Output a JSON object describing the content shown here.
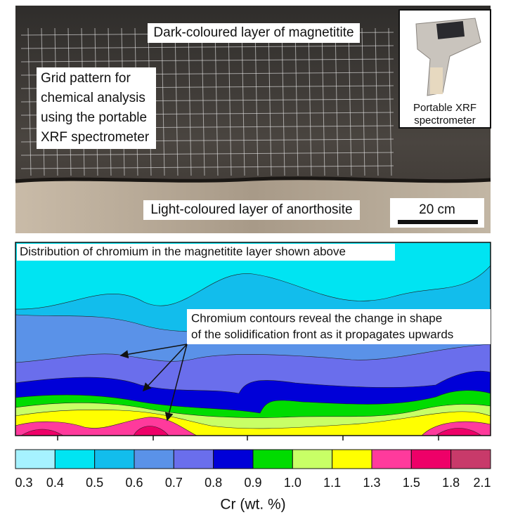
{
  "photo": {
    "top_label": "Dark-coloured layer of magnetitite",
    "left_label": [
      "Grid pattern for",
      "chemical analysis",
      "using the portable",
      "XRF spectrometer"
    ],
    "bottom_label": "Light-coloured layer of anorthosite",
    "scale_bar": "20 cm",
    "inset_caption": [
      "Portable XRF",
      "spectrometer"
    ]
  },
  "map": {
    "title": "Distribution of chromium in the magnetitite layer shown above",
    "annotation": [
      "Chromium contours reveal the change in shape",
      "of the solidification front as it propagates upwards"
    ]
  },
  "colorbar": {
    "ticks": [
      "0.3",
      "0.4",
      "0.5",
      "0.6",
      "0.7",
      "0.8",
      "0.9",
      "1.0",
      "1.1",
      "1.3",
      "1.5",
      "1.8",
      "2.1"
    ],
    "colors": [
      "#a6f2ff",
      "#00e4f2",
      "#12bdec",
      "#5a92e8",
      "#6a6eec",
      "#0000d8",
      "#00dc00",
      "#c8ff66",
      "#ffff00",
      "#ff3a9c",
      "#ee0068",
      "#c83a6a"
    ],
    "label": "Cr (wt. %)"
  }
}
